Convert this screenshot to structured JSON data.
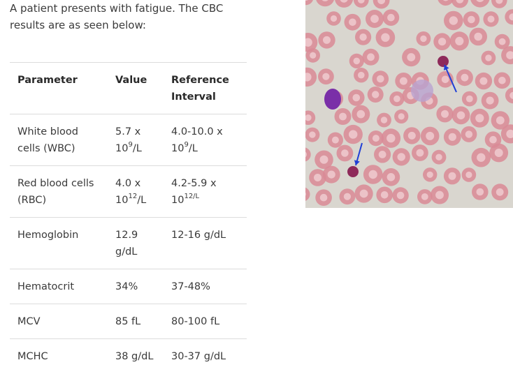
{
  "intro_text": "A patient presents with fatigue. The CBC results are as seen below:",
  "table": {
    "headers": [
      "Parameter",
      "Value",
      "Reference Interval"
    ],
    "rows": [
      {
        "parameter": "White blood cells (WBC)",
        "value_num": "5.7 x",
        "value_base": "10",
        "value_exp": "9",
        "value_unit": "/L",
        "ref_num": "4.0-10.0 x",
        "ref_base": "10",
        "ref_exp": "9",
        "ref_unit": "/L"
      },
      {
        "parameter": "Red blood cells (RBC)",
        "value_num": "4.0 x",
        "value_base": "10",
        "value_exp": "12",
        "value_unit": "/L",
        "ref_num": "4.2-5.9 x",
        "ref_base": "10",
        "ref_exp": "12/L",
        "ref_unit": ""
      },
      {
        "parameter": "Hemoglobin",
        "value": "12.9 g/dL",
        "reference": "12-16 g/dL"
      },
      {
        "parameter": "Hematocrit",
        "value": "34%",
        "reference": "37-48%"
      },
      {
        "parameter": "MCV",
        "value": "85 fL",
        "reference": "80-100 fL"
      },
      {
        "parameter": "MCHC",
        "value": "38 g/dL",
        "reference": "30-37 g/dL"
      }
    ]
  },
  "image": {
    "description_icon": "blood-smear-image",
    "background_color": "#d9d6cf",
    "rbc_color": "#d98995",
    "wbc_color": "#7a2fa8",
    "arrow_color": "#1f3fd6"
  }
}
